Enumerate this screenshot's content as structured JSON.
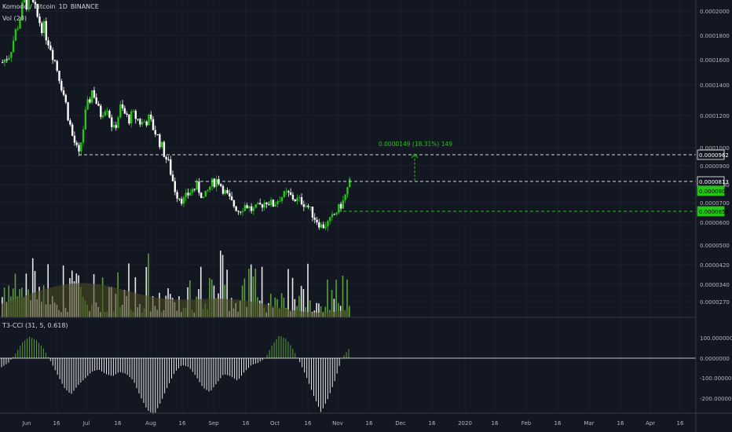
{
  "legend": {
    "symbol": "Komodo / Bitcoin",
    "interval": "1D",
    "exchange": "BINANCE",
    "volume_label": "Vol (20)",
    "indicator_label": "T3-CCI (31, 5, 0.618)"
  },
  "measure_label": "0.0000149 (18.31%) 149",
  "price_badges": [
    {
      "text": "0.0000962",
      "kind": "outline"
    },
    {
      "text": "0.0000813",
      "kind": "outline"
    },
    {
      "text": "0.0000807",
      "kind": "green"
    },
    {
      "text": "0.0000650",
      "kind": "green"
    }
  ],
  "price_axis": [
    "0.0002000",
    "0.0001800",
    "0.0001600",
    "0.0001400",
    "0.0001200",
    "0.0001000",
    "0.0000900",
    "0.0000800",
    "0.0000700",
    "0.0000600",
    "0.0000500",
    "0.0000420",
    "0.0000340",
    "0.0000270"
  ],
  "cci_axis": [
    "100.0000000",
    "0.0000000",
    "-100.0000000",
    "-200.0000000"
  ],
  "time_axis": [
    "Jun",
    "16",
    "Jul",
    "16",
    "Aug",
    "16",
    "Sep",
    "16",
    "Oct",
    "16",
    "Nov",
    "16",
    "Dec",
    "16",
    "2020",
    "16",
    "Feb",
    "16",
    "Mar",
    "16",
    "Apr",
    "16"
  ],
  "colors": {
    "background": "#131722",
    "up": "#26c416",
    "down": "#ffffff",
    "volume_ma": "#4a4a22",
    "guide": "#d1d4dc",
    "accent": "#26c416"
  },
  "chart_data": {
    "type": "candlestick",
    "title": "Komodo / Bitcoin, 1D, BINANCE",
    "x_range": [
      "Jun",
      "Apr"
    ],
    "y_range": [
      2.7e-05,
      0.0002
    ],
    "levels": {
      "upper": 9.62e-05,
      "current": 8.13e-05,
      "last_close": 8.07e-05,
      "lower": 6.5e-05
    },
    "measure": {
      "change": 1.49e-05,
      "percent": 18.31,
      "ticks": 149
    },
    "price_path": [
      0.000158,
      0.000165,
      0.000185,
      0.000205,
      0.00021,
      0.000195,
      0.000185,
      0.00017,
      0.00015,
      0.00013,
      0.000108,
      9.5e-05,
      0.000122,
      0.000138,
      0.00012,
      0.000128,
      0.00011,
      0.000125,
      0.000118,
      0.00012,
      0.000115,
      0.000118,
      0.00011,
      0.0001,
      9e-05,
      7.5e-05,
      7.1e-05,
      7.6e-05,
      7.9e-05,
      7.2e-05,
      8e-05,
      8.3e-05,
      7.6e-05,
      7e-05,
      6.6e-05,
      6.9e-05,
      6.6e-05,
      6.8e-05,
      7.1e-05,
      6.9e-05,
      7.3e-05,
      7.5e-05,
      7.2e-05,
      7.1e-05,
      6.8e-05,
      6.2e-05,
      5.8e-05,
      6e-05,
      6.5e-05,
      7e-05,
      8.1e-05
    ],
    "indicator": {
      "name": "T3-CCI",
      "range": [
        -250,
        150
      ],
      "path": [
        -40,
        -20,
        20,
        70,
        95,
        80,
        45,
        -10,
        -70,
        -130,
        -160,
        -120,
        -90,
        -60,
        -50,
        -70,
        -80,
        -60,
        -70,
        -100,
        -170,
        -230,
        -250,
        -190,
        -120,
        -60,
        -30,
        -40,
        -80,
        -130,
        -150,
        -110,
        -70,
        -80,
        -100,
        -60,
        -30,
        -20,
        0,
        60,
        100,
        85,
        40,
        -20,
        -90,
        -170,
        -240,
        -180,
        -100,
        0,
        40
      ]
    }
  }
}
